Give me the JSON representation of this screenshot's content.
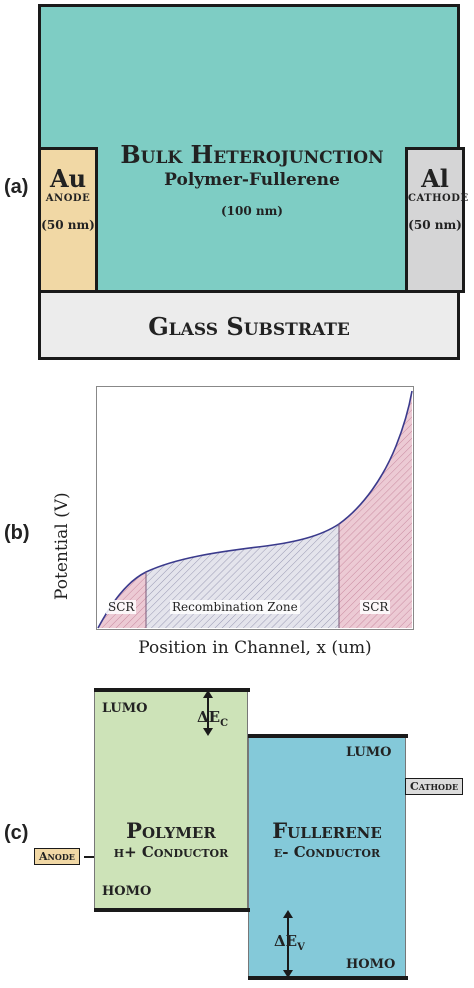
{
  "panel_a": {
    "label": "(a)",
    "active_layer": {
      "title": "Bulk Heterojunction",
      "subtitle": "Polymer-Fullerene",
      "thickness": "(100 nm)"
    },
    "anode": {
      "symbol": "Au",
      "role": "Anode",
      "thickness": "(50 nm)"
    },
    "cathode": {
      "symbol": "Al",
      "role": "Cathode",
      "thickness": "(50 nm)"
    },
    "substrate": "Glass Substrate",
    "colors": {
      "active": "#7ecdc4",
      "anode": "#f1d8a5",
      "cathode": "#d5d5d6",
      "substrate": "#ececec"
    }
  },
  "panel_b": {
    "label": "(b)",
    "xlabel": "Position in Channel, x (um)",
    "ylabel": "Potential (V)",
    "zones": {
      "left": "SCR",
      "middle": "Recombination Zone",
      "right": "SCR"
    },
    "colors": {
      "scr_fill": "#e6b6c4",
      "recombination_fill": "#c7c7d6",
      "curve": "#3a3a8c"
    }
  },
  "panel_c": {
    "label": "(c)",
    "polymer": {
      "title": "Polymer",
      "subtitle": "h+ Conductor",
      "lumo": "LUMO",
      "homo": "HOMO"
    },
    "fullerene": {
      "title": "Fullerene",
      "subtitle": "e- Conductor",
      "lumo": "LUMO",
      "homo": "HOMO"
    },
    "delta_c": {
      "base": "ΔE",
      "sub": "C"
    },
    "delta_v": {
      "base": "ΔE",
      "sub": "V"
    },
    "anode": "Anode",
    "cathode": "Cathode",
    "colors": {
      "polymer": "#cde3b8",
      "fullerene": "#84c9d9",
      "anode": "#f1d8a5",
      "cathode": "#dcdcdc"
    }
  }
}
